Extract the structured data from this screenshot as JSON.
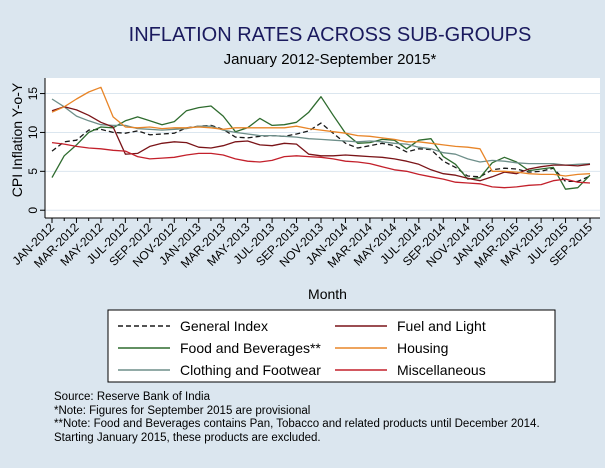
{
  "chart_data": {
    "type": "line",
    "title": "INFLATION RATES ACROSS SUB-GROUPS",
    "subtitle": "January 2012-September 2015*",
    "xlabel": "Month",
    "ylabel": "CPI Inflation Y-o-Y",
    "ylim": [
      -1,
      17
    ],
    "yticks": [
      0,
      5,
      10,
      15
    ],
    "grid": true,
    "legend_position": "bottom",
    "x": [
      "JAN-2012",
      "FEB-2012",
      "MAR-2012",
      "APR-2012",
      "MAY-2012",
      "JUN-2012",
      "JUL-2012",
      "AUG-2012",
      "SEP-2012",
      "OCT-2012",
      "NOV-2012",
      "DEC-2012",
      "JAN-2013",
      "FEB-2013",
      "MAR-2013",
      "APR-2013",
      "MAY-2013",
      "JUN-2013",
      "JUL-2013",
      "AUG-2013",
      "SEP-2013",
      "OCT-2013",
      "NOV-2013",
      "DEC-2013",
      "JAN-2014",
      "FEB-2014",
      "MAR-2014",
      "APR-2014",
      "MAY-2014",
      "JUN-2014",
      "JUL-2014",
      "AUG-2014",
      "SEP-2014",
      "OCT-2014",
      "NOV-2014",
      "DEC-2014",
      "JAN-2015",
      "FEB-2015",
      "MAR-2015",
      "APR-2015",
      "MAY-2015",
      "JUN-2015",
      "JUL-2015",
      "AUG-2015",
      "SEP-2015"
    ],
    "xtick_labels": [
      "JAN-2012",
      "MAR-2012",
      "MAY-2012",
      "JUL-2012",
      "SEP-2012",
      "NOV-2012",
      "JAN-2013",
      "MAR-2013",
      "MAY-2013",
      "JUL-2013",
      "SEP-2013",
      "NOV-2013",
      "JAN-2014",
      "MAR-2014",
      "MAY-2014",
      "JUL-2014",
      "SEP-2014",
      "NOV-2014",
      "JAN-2015",
      "MAR-2015",
      "MAY-2015",
      "JUL-2015",
      "SEP-2015"
    ],
    "series": [
      {
        "name": "General Index",
        "color": "#1a1a1a",
        "dashed": true,
        "values": [
          7.6,
          8.8,
          9.0,
          10.3,
          10.4,
          10.0,
          9.9,
          10.2,
          9.7,
          9.8,
          9.9,
          10.6,
          10.8,
          10.9,
          10.4,
          9.4,
          9.3,
          9.5,
          9.6,
          9.5,
          9.8,
          10.2,
          11.2,
          9.9,
          8.6,
          8.0,
          8.3,
          8.6,
          8.3,
          7.5,
          7.9,
          7.8,
          6.3,
          5.5,
          4.4,
          4.3,
          5.2,
          5.4,
          5.3,
          4.9,
          5.0,
          5.4,
          3.7,
          3.7,
          4.4
        ]
      },
      {
        "name": "Food and Beverages**",
        "color": "#2e6b2e",
        "dashed": false,
        "values": [
          4.2,
          7.0,
          8.4,
          10.0,
          10.7,
          10.6,
          11.5,
          12.0,
          11.5,
          11.0,
          11.4,
          12.8,
          13.2,
          13.4,
          12.1,
          10.1,
          10.6,
          11.8,
          10.9,
          11.0,
          11.3,
          12.6,
          14.6,
          12.2,
          9.9,
          8.6,
          8.7,
          9.1,
          9.0,
          7.9,
          9.0,
          9.2,
          6.9,
          5.9,
          4.0,
          4.2,
          6.1,
          6.8,
          6.2,
          5.1,
          5.3,
          5.5,
          2.7,
          2.9,
          4.5
        ]
      },
      {
        "name": "Clothing and Footwear",
        "color": "#6e8f8a",
        "dashed": false,
        "values": [
          14.3,
          13.3,
          12.1,
          11.5,
          11.0,
          10.9,
          10.9,
          10.5,
          10.4,
          10.3,
          10.4,
          10.5,
          10.8,
          10.8,
          10.3,
          10.0,
          9.8,
          9.6,
          9.6,
          9.5,
          9.4,
          9.2,
          9.1,
          9.0,
          8.9,
          8.8,
          8.9,
          8.8,
          8.6,
          8.5,
          8.1,
          7.9,
          7.4,
          7.2,
          6.6,
          6.2,
          6.4,
          6.3,
          6.1,
          6.0,
          6.0,
          6.0,
          5.8,
          5.9,
          6.0
        ]
      },
      {
        "name": "Fuel and Light",
        "color": "#7a1418",
        "dashed": false,
        "values": [
          12.8,
          13.3,
          12.9,
          12.2,
          11.3,
          10.7,
          7.2,
          7.3,
          8.2,
          8.6,
          8.8,
          8.7,
          8.1,
          8.0,
          8.3,
          8.8,
          8.9,
          8.4,
          8.3,
          8.6,
          8.5,
          7.2,
          7.0,
          7.0,
          7.1,
          7.0,
          6.9,
          6.8,
          6.6,
          6.3,
          5.9,
          5.2,
          4.7,
          4.5,
          4.1,
          3.8,
          4.3,
          4.9,
          4.7,
          5.3,
          5.6,
          5.8,
          5.8,
          5.7,
          5.9
        ]
      },
      {
        "name": "Housing",
        "color": "#e88528",
        "dashed": false,
        "values": [
          12.6,
          13.3,
          14.3,
          15.2,
          15.8,
          12.0,
          10.7,
          10.6,
          10.7,
          10.5,
          10.6,
          10.6,
          10.7,
          10.6,
          10.4,
          10.6,
          10.6,
          10.6,
          10.6,
          10.6,
          10.8,
          10.5,
          10.3,
          10.1,
          9.9,
          9.6,
          9.5,
          9.3,
          9.1,
          8.8,
          8.8,
          8.6,
          8.4,
          8.2,
          8.1,
          7.9,
          5.0,
          5.0,
          4.9,
          4.7,
          4.6,
          4.6,
          4.4,
          4.6,
          4.7
        ]
      },
      {
        "name": "Miscellaneous",
        "color": "#c3202b",
        "dashed": false,
        "values": [
          8.7,
          8.5,
          8.2,
          8.0,
          7.9,
          7.7,
          7.6,
          6.9,
          6.6,
          6.7,
          6.8,
          7.1,
          7.3,
          7.3,
          7.1,
          6.6,
          6.3,
          6.2,
          6.4,
          6.9,
          7.0,
          6.9,
          6.8,
          6.6,
          6.3,
          6.2,
          6.0,
          5.6,
          5.2,
          5.0,
          4.6,
          4.3,
          4.0,
          3.6,
          3.5,
          3.4,
          3.0,
          2.9,
          3.0,
          3.2,
          3.3,
          3.8,
          4.0,
          3.6,
          3.5
        ]
      }
    ]
  },
  "legend": {
    "items": [
      {
        "label": "General Index",
        "color": "#1a1a1a",
        "dashed": true
      },
      {
        "label": "Fuel and Light",
        "color": "#7a1418",
        "dashed": false
      },
      {
        "label": "Food and Beverages**",
        "color": "#2e6b2e",
        "dashed": false
      },
      {
        "label": "Housing",
        "color": "#e88528",
        "dashed": false
      },
      {
        "label": "Clothing and Footwear",
        "color": "#6e8f8a",
        "dashed": false
      },
      {
        "label": "Miscellaneous",
        "color": "#c3202b",
        "dashed": false
      }
    ]
  },
  "notes": {
    "source": "Source: Reserve Bank of India",
    "note1": "*Note: Figures for September 2015 are provisional",
    "note2": "**Note: Food and Beverages contains Pan, Tobacco and related products until December 2014.",
    "note3": "Starting January 2015, these products are excluded."
  },
  "colors": {
    "background": "#dbe6ef",
    "plot_background": "#ffffff",
    "grid": "#dbe6ef",
    "title": "#1a1a5e"
  }
}
